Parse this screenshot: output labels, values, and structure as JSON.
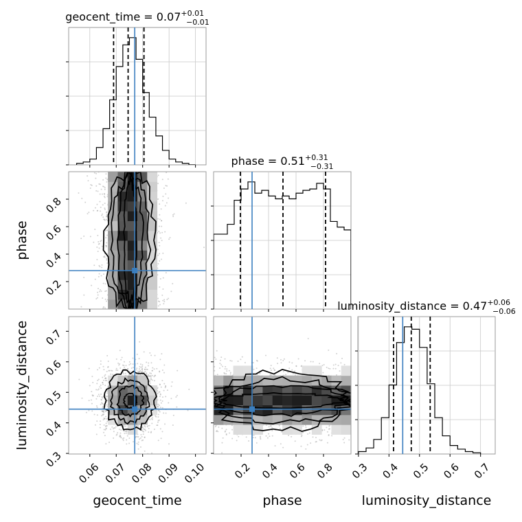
{
  "chart_data": {
    "type": "corner",
    "parameters": [
      "geocent_time",
      "phase",
      "luminosity_distance"
    ],
    "injection": {
      "geocent_time": 0.077,
      "phase": 0.28,
      "luminosity_distance": 0.445
    },
    "titles": [
      {
        "name": "geocent_time",
        "eq": " = 0.07",
        "sup": "+0.01",
        "sub": "−0.01"
      },
      {
        "name": "phase",
        "eq": " = 0.51",
        "sup": "+0.31",
        "sub": "−0.31"
      },
      {
        "name": "luminosity_distance",
        "eq": " = 0.47",
        "sup": "+0.06",
        "sub": "−0.06"
      }
    ],
    "quantiles": {
      "geocent_time": [
        0.069,
        0.0745,
        0.0805
      ],
      "phase": [
        0.195,
        0.505,
        0.815
      ],
      "luminosity_distance": [
        0.415,
        0.473,
        0.535
      ]
    },
    "ranges": {
      "geocent_time": [
        0.052,
        0.104
      ],
      "phase": [
        0.0,
        1.0
      ],
      "luminosity_distance": [
        0.298,
        0.748
      ]
    },
    "ticks": {
      "geocent_time": [
        "0.06",
        "0.07",
        "0.08",
        "0.09",
        "0.10"
      ],
      "phase": [
        "0.2",
        "0.4",
        "0.6",
        "0.8"
      ],
      "luminosity_distance": [
        "0.3",
        "0.4",
        "0.5",
        "0.6",
        "0.7"
      ]
    },
    "axis_labels": {
      "geocent_time": "geocent_time",
      "phase": "phase",
      "luminosity_distance": "luminosity_distance"
    },
    "histograms": {
      "geocent_time": {
        "edges": [
          0.055,
          0.0575,
          0.06,
          0.0625,
          0.065,
          0.0675,
          0.07,
          0.0725,
          0.075,
          0.0775,
          0.08,
          0.0825,
          0.085,
          0.0875,
          0.09,
          0.0925,
          0.095,
          0.0975,
          0.1
        ],
        "counts": [
          1,
          2,
          4,
          12,
          25,
          45,
          68,
          83,
          88,
          73,
          50,
          33,
          20,
          10,
          4,
          2,
          1,
          0
        ]
      },
      "phase": {
        "edges": [
          0.0,
          0.05,
          0.1,
          0.15,
          0.2,
          0.25,
          0.3,
          0.35,
          0.4,
          0.45,
          0.5,
          0.55,
          0.6,
          0.65,
          0.7,
          0.75,
          0.8,
          0.85,
          0.9,
          0.95,
          1.0
        ],
        "counts": [
          53,
          53,
          60,
          77,
          85,
          90,
          82,
          84,
          80,
          78,
          80,
          78,
          82,
          84,
          85,
          89,
          85,
          62,
          58,
          56
        ]
      },
      "luminosity_distance": {
        "edges": [
          0.3,
          0.325,
          0.35,
          0.375,
          0.4,
          0.425,
          0.45,
          0.475,
          0.5,
          0.525,
          0.55,
          0.575,
          0.6,
          0.625,
          0.65,
          0.675,
          0.7
        ],
        "counts": [
          2,
          5,
          12,
          30,
          57,
          92,
          105,
          103,
          88,
          58,
          30,
          15,
          7,
          4,
          2,
          1
        ]
      }
    },
    "contour_levels_sigma": [
      0.5,
      1.0,
      1.5,
      2.0
    ],
    "grid": true
  }
}
